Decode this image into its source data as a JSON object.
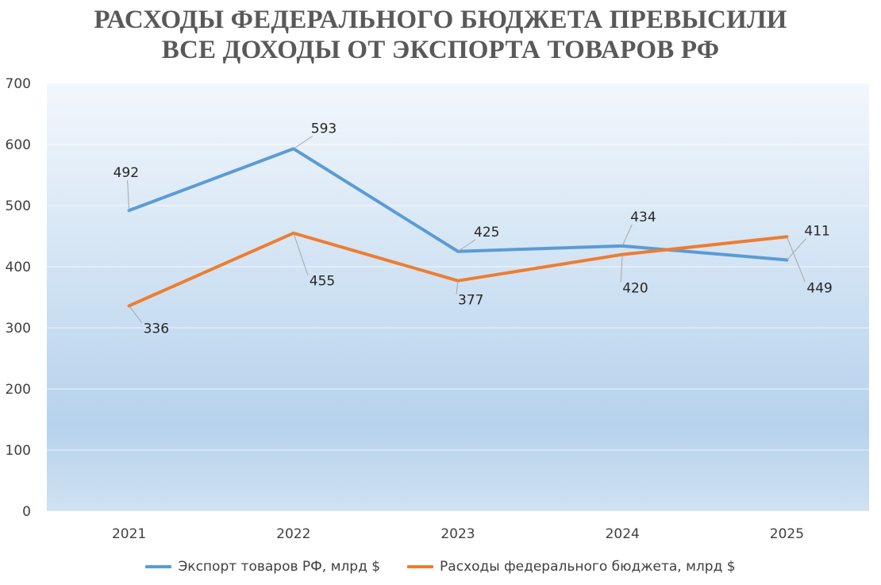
{
  "title_line1": "РАСХОДЫ ФЕДЕРАЛЬНОГО БЮДЖЕТА ПРЕВЫСИЛИ",
  "title_line2": "ВСЕ ДОХОДЫ ОТ ЭКСПОРТА ТОВАРОВ РФ",
  "colors": {
    "series1": "#5B9BD5",
    "series2": "#ED7D31",
    "plot_bg_top": "#f2f7fc",
    "plot_bg_bottom": "#b6d2ec"
  },
  "chart_data": {
    "type": "line",
    "categories": [
      "2021",
      "2022",
      "2023",
      "2024",
      "2025"
    ],
    "series": [
      {
        "name": "Экспорт товаров РФ, млрд $",
        "values": [
          492,
          593,
          425,
          434,
          411
        ]
      },
      {
        "name": "Расходы федерального бюджета, млрд $",
        "values": [
          336,
          455,
          377,
          420,
          449
        ]
      }
    ],
    "ylim": [
      0,
      700
    ],
    "yticks": [
      "0",
      "100",
      "200",
      "300",
      "400",
      "500",
      "600",
      "700"
    ],
    "grid": true,
    "legend": "bottom"
  }
}
